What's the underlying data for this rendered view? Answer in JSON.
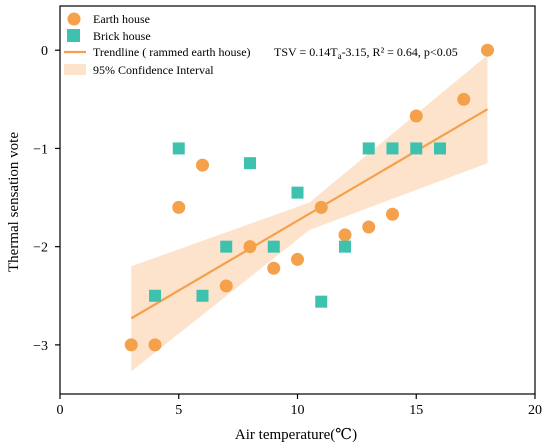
{
  "chart_data": {
    "type": "scatter",
    "xlabel": "Air temperature(℃)",
    "ylabel": "Thermal sensation vote",
    "xlim": [
      0,
      20
    ],
    "ylim": [
      -3.5,
      0.45
    ],
    "x_ticks": [
      0,
      5,
      10,
      15,
      20
    ],
    "y_ticks": [
      0,
      -1,
      -2,
      -3
    ],
    "x_tick_labels": [
      "0",
      "5",
      "10",
      "15",
      "20"
    ],
    "y_tick_labels": [
      "0",
      "−1",
      "−2",
      "−3"
    ],
    "grid": false,
    "legend_position": "top-left",
    "series": [
      {
        "name": "Earth house",
        "marker": "circle",
        "color": "#F5A04A",
        "points": [
          {
            "x": 3,
            "y": -3
          },
          {
            "x": 4,
            "y": -3
          },
          {
            "x": 5,
            "y": -1.6
          },
          {
            "x": 6,
            "y": -1.17
          },
          {
            "x": 7,
            "y": -2.4
          },
          {
            "x": 8,
            "y": -2
          },
          {
            "x": 9,
            "y": -2.22
          },
          {
            "x": 10,
            "y": -2.13
          },
          {
            "x": 11,
            "y": -1.6
          },
          {
            "x": 12,
            "y": -1.88
          },
          {
            "x": 13,
            "y": -1.8
          },
          {
            "x": 14,
            "y": -1.67
          },
          {
            "x": 15,
            "y": -0.67
          },
          {
            "x": 17,
            "y": -0.5
          },
          {
            "x": 18,
            "y": 0
          }
        ]
      },
      {
        "name": "Brick house",
        "marker": "square",
        "color": "#3EC2AE",
        "points": [
          {
            "x": 4,
            "y": -2.5
          },
          {
            "x": 5,
            "y": -1
          },
          {
            "x": 6,
            "y": -2.5
          },
          {
            "x": 7,
            "y": -2
          },
          {
            "x": 8,
            "y": -1.15
          },
          {
            "x": 9,
            "y": -2
          },
          {
            "x": 10,
            "y": -1.45
          },
          {
            "x": 11,
            "y": -2.56
          },
          {
            "x": 12,
            "y": -2
          },
          {
            "x": 13,
            "y": -1
          },
          {
            "x": 14,
            "y": -1
          },
          {
            "x": 15,
            "y": -1
          },
          {
            "x": 16,
            "y": -1
          }
        ]
      }
    ],
    "trendline": {
      "name": "Trendline ( rammed earth house)",
      "color": "#F5A04A",
      "slope": 0.14,
      "intercept": -3.15,
      "x_range": [
        3,
        18
      ],
      "fitted_endpoints": [
        {
          "x": 3,
          "y": -2.73
        },
        {
          "x": 18,
          "y": -0.6
        }
      ]
    },
    "confidence_interval": {
      "name": "95% Confidence Interval",
      "color": "#FDE3CC",
      "upper": [
        {
          "x": 3,
          "y": -2.2
        },
        {
          "x": 10.5,
          "y": -1.55
        },
        {
          "x": 18,
          "y": -0.05
        }
      ],
      "lower": [
        {
          "x": 3,
          "y": -3.27
        },
        {
          "x": 10.5,
          "y": -1.83
        },
        {
          "x": 18,
          "y": -1.15
        }
      ]
    },
    "annotation": {
      "prefix": "TSV = 0.14T",
      "subscript": "a",
      "suffix": "-3.15, R² = 0.64, p<0.05"
    }
  }
}
